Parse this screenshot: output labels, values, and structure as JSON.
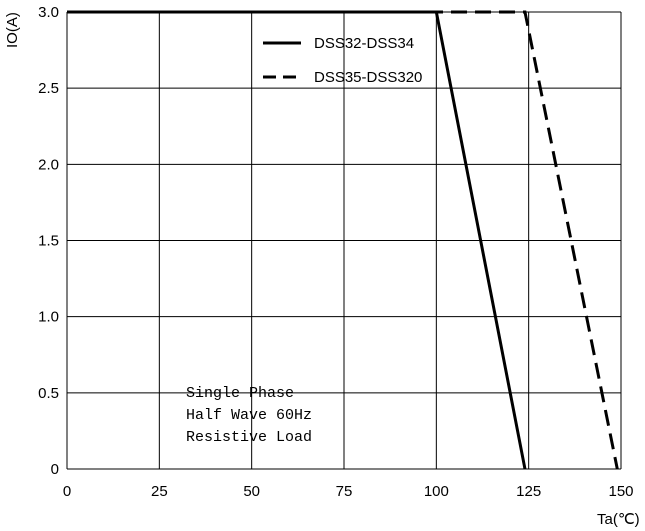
{
  "chart_data": {
    "type": "line",
    "xlabel": "Ta(℃)",
    "ylabel": "IO(A)",
    "xlim": [
      0,
      150
    ],
    "ylim": [
      0,
      3.0
    ],
    "x_ticks": [
      "0",
      "25",
      "50",
      "75",
      "100",
      "125",
      "150"
    ],
    "y_ticks": [
      "0",
      "0.5",
      "1.0",
      "1.5",
      "2.0",
      "2.5",
      "3.0"
    ],
    "grid": true,
    "legend_position": "top-right",
    "series": [
      {
        "name": "DSS32-DSS34",
        "style": "solid",
        "color": "#000000",
        "x": [
          0,
          100,
          124
        ],
        "y": [
          3.0,
          3.0,
          0
        ]
      },
      {
        "name": "DSS35-DSS320",
        "style": "dashed",
        "color": "#000000",
        "x": [
          0,
          124,
          149
        ],
        "y": [
          3.0,
          3.0,
          0
        ]
      }
    ],
    "annotation": [
      "Single Phase",
      "Half Wave 60Hz",
      "Resistive Load"
    ]
  }
}
